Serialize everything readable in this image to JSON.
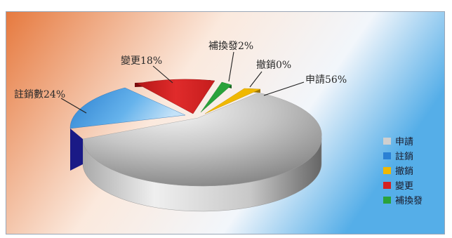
{
  "chart_data": {
    "type": "pie",
    "title": "",
    "slices": [
      {
        "label": "申請",
        "data_label": "申請56%",
        "value": 56,
        "color": "#b9b9b9"
      },
      {
        "label": "註銷",
        "data_label": "註銷數24%",
        "value": 24,
        "color": "#3a8fd6"
      },
      {
        "label": "變更",
        "data_label": "變更18%",
        "value": 18,
        "color": "#d42222"
      },
      {
        "label": "補換發",
        "data_label": "補換發2%",
        "value": 2,
        "color": "#2aa23a"
      },
      {
        "label": "撤銷",
        "data_label": "撤銷0%",
        "value": 0,
        "color": "#f0b800"
      }
    ],
    "legend": {
      "position": "right",
      "entries": [
        "申請",
        "註銷",
        "撤銷",
        "變更",
        "補換發"
      ]
    },
    "style": "3d-exploded"
  }
}
